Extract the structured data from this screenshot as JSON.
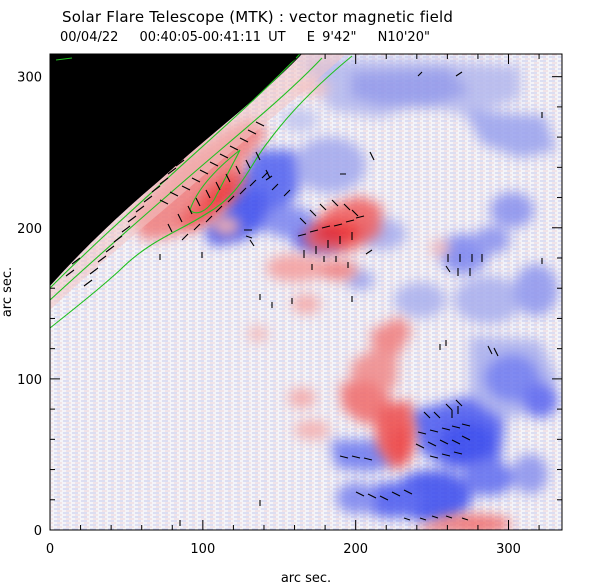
{
  "header": {
    "title": "Solar Flare Telescope (MTK) : vector magnetic field",
    "date": "00/04/22",
    "time_range": "00:40:05-00:41:11 UT",
    "position_ew": "E 9'42\"",
    "position_ns": "N10'20\""
  },
  "axes": {
    "xlabel": "arc sec.",
    "ylabel": "arc sec.",
    "xlim": [
      0,
      335
    ],
    "ylim": [
      0,
      315
    ],
    "x_ticks": [
      "0",
      "100",
      "200",
      "300"
    ],
    "x_tick_values": [
      0,
      100,
      200,
      300
    ],
    "y_ticks": [
      "0",
      "100",
      "200",
      "300"
    ],
    "y_tick_values": [
      0,
      100,
      200,
      300
    ]
  },
  "colors": {
    "positive_polarity": "#f05050",
    "negative_polarity": "#4a5cf0",
    "background_noise": "#e8e8f4",
    "off_disk": "#000000",
    "contour": "#20c020",
    "vector": "#000000"
  }
}
